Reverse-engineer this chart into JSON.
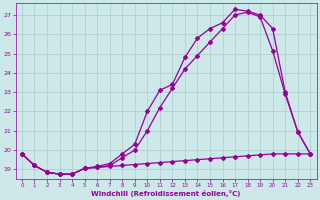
{
  "xlabel": "Windchill (Refroidissement éolien,°C)",
  "background_color": "#cce8e8",
  "grid_color": "#aacccc",
  "line_color": "#990099",
  "xlim": [
    -0.5,
    23.5
  ],
  "ylim": [
    18.5,
    27.6
  ],
  "xticks": [
    0,
    1,
    2,
    3,
    4,
    5,
    6,
    7,
    8,
    9,
    10,
    11,
    12,
    13,
    14,
    15,
    16,
    17,
    18,
    19,
    20,
    21,
    22,
    23
  ],
  "yticks": [
    19,
    20,
    21,
    22,
    23,
    24,
    25,
    26,
    27
  ],
  "series1_x": [
    0,
    1,
    2,
    3,
    4,
    5,
    6,
    7,
    8,
    9,
    10,
    11,
    12,
    13,
    14,
    15,
    16,
    17,
    18,
    19,
    20,
    21,
    22,
    23
  ],
  "series1_y": [
    19.8,
    19.2,
    18.85,
    18.75,
    18.75,
    19.05,
    19.1,
    19.15,
    19.2,
    19.25,
    19.3,
    19.35,
    19.4,
    19.45,
    19.5,
    19.55,
    19.6,
    19.65,
    19.7,
    19.75,
    19.8,
    19.8,
    19.8,
    19.8
  ],
  "series2_x": [
    0,
    1,
    2,
    3,
    4,
    5,
    6,
    7,
    8,
    9,
    10,
    11,
    12,
    13,
    14,
    15,
    16,
    17,
    18,
    19,
    20,
    21,
    22,
    23
  ],
  "series2_y": [
    19.8,
    19.2,
    18.85,
    18.75,
    18.75,
    19.05,
    19.1,
    19.2,
    19.6,
    20.0,
    21.0,
    22.2,
    23.2,
    24.2,
    24.9,
    25.6,
    26.3,
    27.0,
    27.15,
    26.9,
    25.15,
    22.9,
    20.95,
    19.8
  ],
  "series3_x": [
    0,
    1,
    2,
    3,
    4,
    5,
    6,
    7,
    8,
    9,
    10,
    11,
    12,
    13,
    14,
    15,
    16,
    17,
    18,
    19,
    20,
    21,
    22,
    23
  ],
  "series3_y": [
    19.8,
    19.2,
    18.85,
    18.75,
    18.75,
    19.05,
    19.15,
    19.3,
    19.8,
    20.3,
    22.0,
    23.1,
    23.4,
    24.8,
    25.8,
    26.3,
    26.6,
    27.3,
    27.2,
    27.0,
    26.3,
    23.0,
    20.95,
    19.8
  ],
  "marker": "D",
  "markersize": 2.0,
  "linewidth": 0.9
}
